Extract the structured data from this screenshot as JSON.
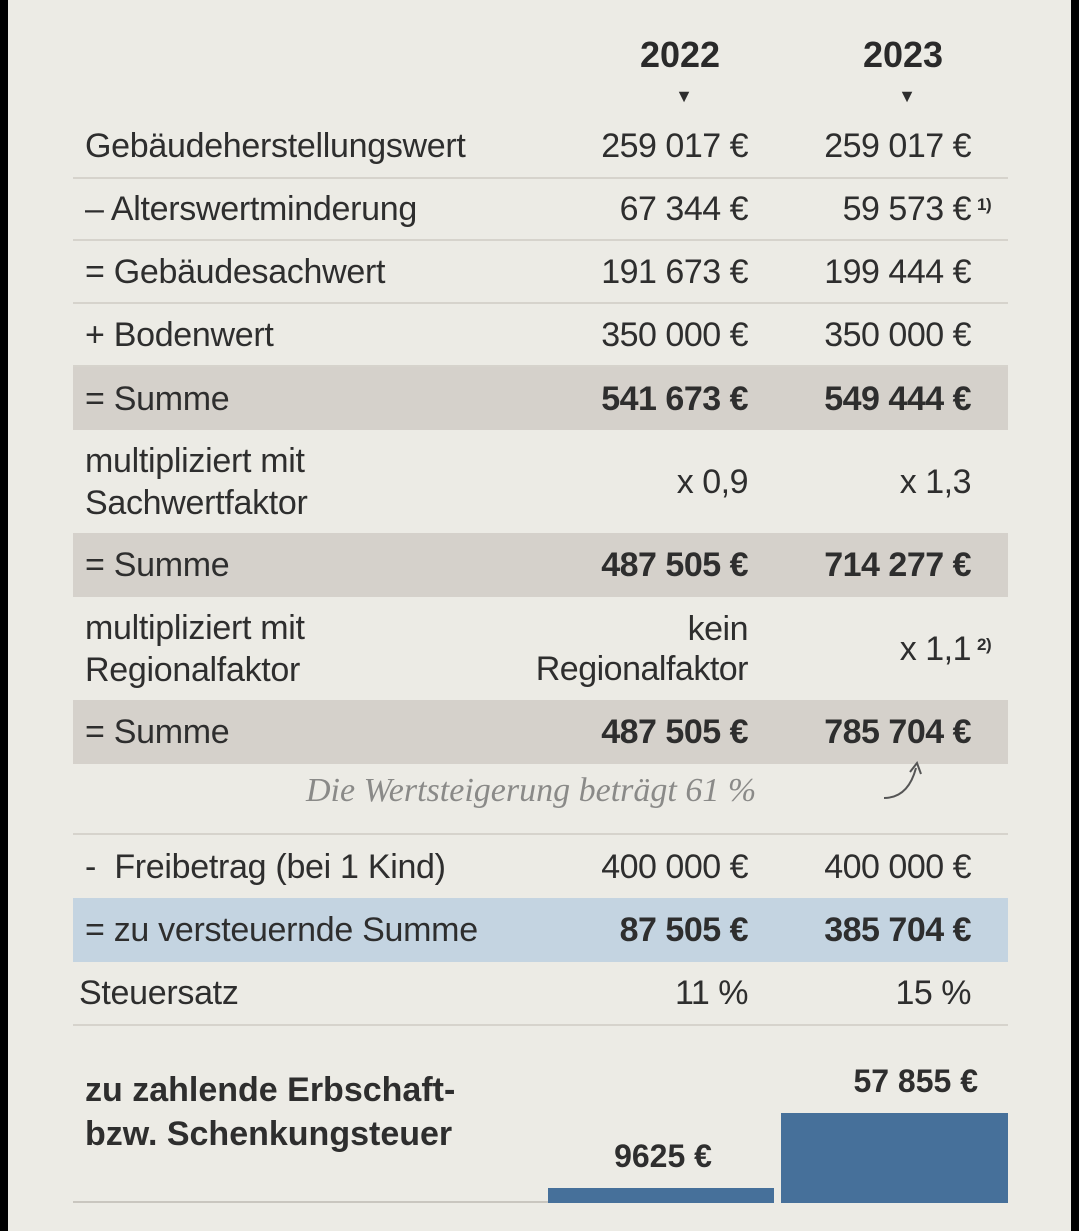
{
  "years": [
    "2022",
    "2023"
  ],
  "rows": [
    {
      "label": "Gebäudeherstellungswert",
      "v2022": "259 017 €",
      "v2023": "259 017 €"
    },
    {
      "label": "– Alterswertminderung",
      "v2022": "67 344 €",
      "v2023": "59 573 €",
      "note2023": "1)"
    },
    {
      "label": "= Gebäudesachwert",
      "v2022": "191 673 €",
      "v2023": "199 444 €"
    },
    {
      "label": "+ Bodenwert",
      "v2022": "350 000 €",
      "v2023": "350 000 €"
    },
    {
      "label": "= Summe",
      "v2022": "541 673 €",
      "v2023": "549 444 €"
    },
    {
      "label1": "multipliziert mit",
      "label2": "Sachwertfaktor",
      "v2022": "x 0,9",
      "v2023": "x 1,3"
    },
    {
      "label": "= Summe",
      "v2022": "487 505 €",
      "v2023": "714 277 €"
    },
    {
      "label1": "multipliziert mit",
      "label2": "Regionalfaktor",
      "v2022_1": "kein",
      "v2022_2": "Regionalfaktor",
      "v2023": "x 1,1",
      "note2023": "2)"
    },
    {
      "label": "= Summe",
      "v2022": "487 505 €",
      "v2023": "785 704 €"
    },
    {
      "label": "-  Freibetrag (bei 1 Kind)",
      "v2022": "400 000 €",
      "v2023": "400 000 €"
    },
    {
      "label": "= zu versteuernde Summe",
      "v2022": "87 505 €",
      "v2023": "385 704 €"
    },
    {
      "label": "Steuersatz",
      "v2022": "11 %",
      "v2023": "15 %"
    }
  ],
  "annotation": "Die Wertsteigerung beträgt 61 %",
  "final": {
    "label1": "zu zahlende Erbschaft-",
    "label2": "bzw. Schenkungsteuer",
    "v2022": "9625 €",
    "v2023": "57 855 €",
    "value2022": 9625,
    "value2023": 57855
  },
  "colors": {
    "background": "#ecebe5",
    "sum_row": "#d5d1cb",
    "taxable_row": "#c4d4e1",
    "bar": "#46709a"
  }
}
